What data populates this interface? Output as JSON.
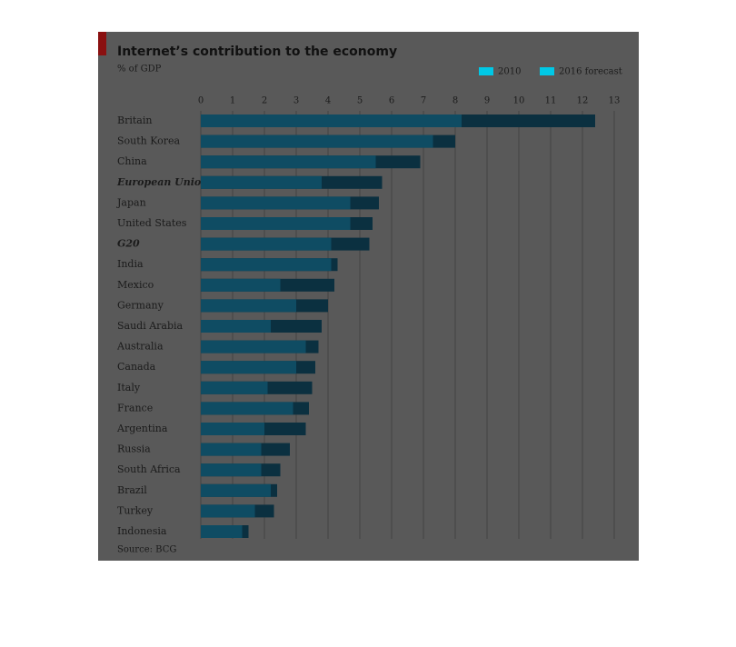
{
  "chart_data": {
    "type": "bar",
    "orientation": "horizontal",
    "overlap": true,
    "title": "Internet’s contribution to the economy",
    "subtitle": "% of GDP",
    "source": "Source: BCG",
    "categories": [
      "Britain",
      "South Korea",
      "China",
      "European Union",
      "Japan",
      "United States",
      "G20",
      "India",
      "Mexico",
      "Germany",
      "Saudi Arabia",
      "Australia",
      "Canada",
      "Italy",
      "France",
      "Argentina",
      "Russia",
      "South Africa",
      "Brazil",
      "Turkey",
      "Indonesia"
    ],
    "bold_categories": [
      3,
      6
    ],
    "series": [
      {
        "name": "2016 forecast",
        "color": "#0b3040",
        "values": [
          12.4,
          8.0,
          6.9,
          5.7,
          5.6,
          5.4,
          5.3,
          4.3,
          4.2,
          4.0,
          3.8,
          3.7,
          3.6,
          3.5,
          3.4,
          3.3,
          2.8,
          2.5,
          2.4,
          2.3,
          1.5
        ]
      },
      {
        "name": "2010",
        "color": "#0f4c63",
        "values": [
          8.2,
          7.3,
          5.5,
          3.8,
          4.7,
          4.7,
          4.1,
          4.1,
          2.5,
          3.0,
          2.2,
          3.3,
          3.0,
          2.1,
          2.9,
          2.0,
          1.9,
          1.9,
          2.2,
          1.7,
          1.3
        ]
      }
    ],
    "legend_colors": [
      "#00c8e6",
      "#00c8e6"
    ],
    "xlim": [
      0,
      13
    ],
    "xticks": [
      0,
      1,
      2,
      3,
      4,
      5,
      6,
      7,
      8,
      9,
      10,
      11,
      12,
      13
    ],
    "grid": true
  }
}
